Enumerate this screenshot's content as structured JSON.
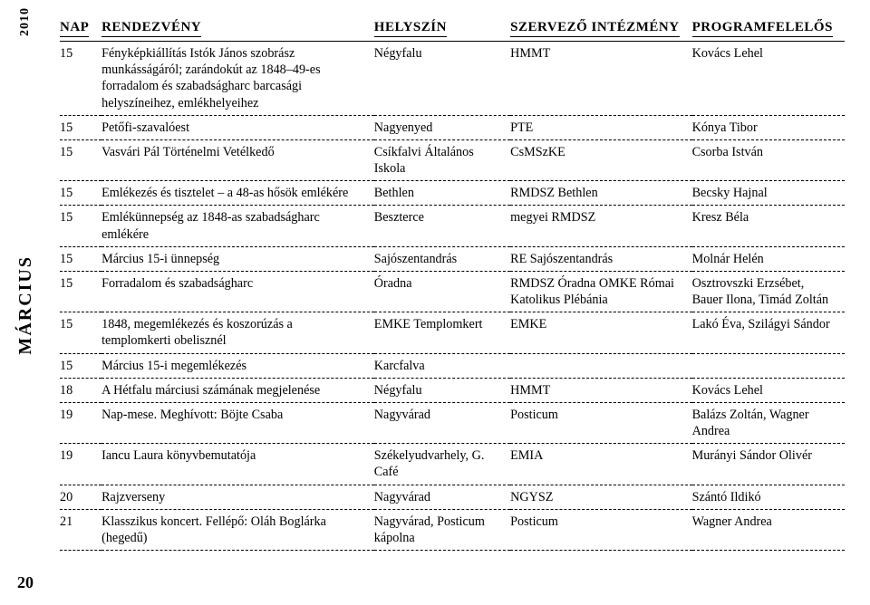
{
  "side": {
    "year": "2010",
    "month": "MÁRCIUS",
    "pagenum": "20"
  },
  "headers": {
    "nap": "NAP",
    "rendezveny": "RENDEZVÉNY",
    "helyszin": "HELYSZÍN",
    "szervezo": "SZERVEZŐ INTÉZMÉNY",
    "program": "PROGRAMFELELŐS"
  },
  "rows": [
    {
      "nap": "15",
      "rend": "Fényképkiállítás Istók János szobrász munkásságáról; zarándokút az 1848–49-es forradalom és szabadságharc barcasági helyszíneihez, emlékhelyeihez",
      "hely": "Négyfalu",
      "szerv": "HMMT",
      "prog": "Kovács Lehel"
    },
    {
      "nap": "15",
      "rend": "Petőfi-szavalóest",
      "hely": "Nagyenyed",
      "szerv": "PTE",
      "prog": "Kónya Tibor"
    },
    {
      "nap": "15",
      "rend": "Vasvári Pál Történelmi Vetélkedő",
      "hely": "Csíkfalvi Általános Iskola",
      "szerv": "CsMSzKE",
      "prog": "Csorba István"
    },
    {
      "nap": "15",
      "rend": "Emlékezés és tisztelet – a 48-as hősök emlékére",
      "hely": "Bethlen",
      "szerv": "RMDSZ Bethlen",
      "prog": "Becsky Hajnal"
    },
    {
      "nap": "15",
      "rend": "Emlékünnepség az 1848-as szabadságharc emlékére",
      "hely": "Beszterce",
      "szerv": "megyei RMDSZ",
      "prog": "Kresz Béla"
    },
    {
      "nap": "15",
      "rend": "Március 15-i ünnepség",
      "hely": "Sajószentandrás",
      "szerv": "RE Sajószentandrás",
      "prog": "Molnár Helén"
    },
    {
      "nap": "15",
      "rend": "Forradalom és szabadságharc",
      "hely": "Óradna",
      "szerv": "RMDSZ Óradna OMKE Római Katolikus Plébánia",
      "prog": "Osztrovszki Erzsébet, Bauer Ilona, Timád Zoltán"
    },
    {
      "nap": "15",
      "rend": "1848, megemlékezés és koszorúzás a templomkerti obelisznél",
      "hely": "EMKE Templomkert",
      "szerv": "EMKE",
      "prog": "Lakó Éva, Szilágyi Sándor"
    },
    {
      "nap": "15",
      "rend": "Március 15-i megemlékezés",
      "hely": "Karcfalva",
      "szerv": "",
      "prog": ""
    },
    {
      "nap": "18",
      "rend": "A Hétfalu márciusi számának megjelenése",
      "hely": "Négyfalu",
      "szerv": "HMMT",
      "prog": "Kovács Lehel"
    },
    {
      "nap": "19",
      "rend": "Nap-mese. Meghívott: Böjte Csaba",
      "hely": "Nagyvárad",
      "szerv": "Posticum",
      "prog": "Balázs Zoltán, Wagner Andrea"
    },
    {
      "nap": "19",
      "rend": "Iancu Laura könyvbemutatója",
      "hely": "Székelyudvarhely, G. Café",
      "szerv": "EMIA",
      "prog": "Murányi Sándor Olivér"
    },
    {
      "nap": "20",
      "rend": "Rajzverseny",
      "hely": "Nagyvárad",
      "szerv": "NGYSZ",
      "prog": "Szántó Ildikó"
    },
    {
      "nap": "21",
      "rend": "Klasszikus koncert. Fellépő: Oláh Boglárka (hegedű)",
      "hely": "Nagyvárad, Posticum kápolna",
      "szerv": "Posticum",
      "prog": "Wagner Andrea"
    }
  ]
}
